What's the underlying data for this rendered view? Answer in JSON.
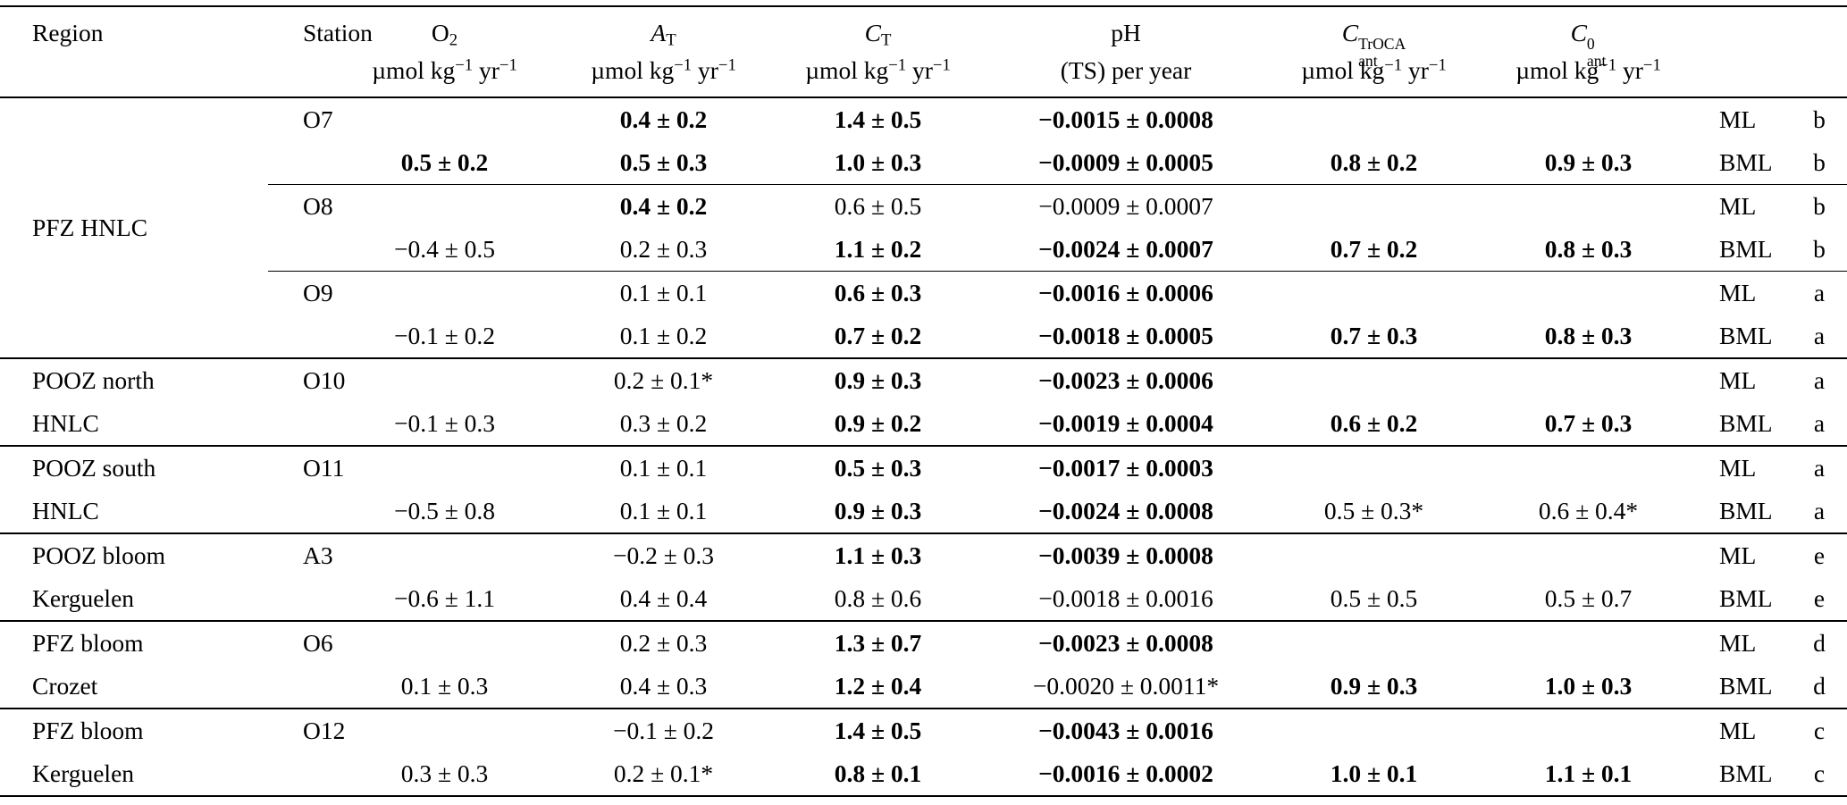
{
  "table": {
    "columns": [
      {
        "id": "region",
        "main": [
          {
            "t": "Region"
          }
        ],
        "unit": []
      },
      {
        "id": "station",
        "main": [
          {
            "t": "Station"
          }
        ],
        "unit": []
      },
      {
        "id": "o2",
        "main": [
          {
            "t": "O"
          },
          {
            "t": "2",
            "s": "sub"
          }
        ],
        "unit": [
          {
            "t": "µmol kg"
          },
          {
            "t": "−1",
            "s": "sup"
          },
          {
            "t": " yr"
          },
          {
            "t": "−1",
            "s": "sup"
          }
        ]
      },
      {
        "id": "at",
        "main": [
          {
            "t": "A",
            "s": "i"
          },
          {
            "t": "T",
            "s": "sub"
          }
        ],
        "unit": [
          {
            "t": "µmol kg"
          },
          {
            "t": "−1",
            "s": "sup"
          },
          {
            "t": " yr"
          },
          {
            "t": "−1",
            "s": "sup"
          }
        ]
      },
      {
        "id": "ct",
        "main": [
          {
            "t": "C",
            "s": "i"
          },
          {
            "t": "T",
            "s": "sub"
          }
        ],
        "unit": [
          {
            "t": "µmol kg"
          },
          {
            "t": "−1",
            "s": "sup"
          },
          {
            "t": " yr"
          },
          {
            "t": "−1",
            "s": "sup"
          }
        ]
      },
      {
        "id": "ph",
        "main": [
          {
            "t": "pH"
          }
        ],
        "unit": [
          {
            "t": "(TS) per year"
          }
        ]
      },
      {
        "id": "cant_troca",
        "main": [
          {
            "t": "C",
            "s": "i"
          },
          {
            "sup": "TrOCA",
            "sub": "ant"
          }
        ],
        "unit": [
          {
            "t": "µmol kg"
          },
          {
            "t": "−1",
            "s": "sup"
          },
          {
            "t": " yr"
          },
          {
            "t": "−1",
            "s": "sup"
          }
        ]
      },
      {
        "id": "cant0",
        "main": [
          {
            "t": "C",
            "s": "i"
          },
          {
            "sup": "0",
            "sub": "ant"
          }
        ],
        "unit": [
          {
            "t": "µmol kg"
          },
          {
            "t": "−1",
            "s": "sup"
          },
          {
            "t": " yr"
          },
          {
            "t": "−1",
            "s": "sup"
          }
        ]
      },
      {
        "id": "layer",
        "main": [],
        "unit": []
      },
      {
        "id": "note",
        "main": [],
        "unit": []
      }
    ],
    "groups": [
      {
        "region": [
          "PFZ HNLC"
        ],
        "stations": [
          {
            "name": "O7",
            "rows": [
              {
                "o2": null,
                "at": {
                  "v": "0.4 ± 0.2",
                  "b": true
                },
                "ct": {
                  "v": "1.4 ± 0.5",
                  "b": true
                },
                "ph": {
                  "v": "−0.0015 ± 0.0008",
                  "b": true
                },
                "cant_troca": null,
                "cant0": null,
                "layer": "ML",
                "note": "b"
              },
              {
                "o2": {
                  "v": "0.5 ± 0.2",
                  "b": true
                },
                "at": {
                  "v": "0.5 ± 0.3",
                  "b": true
                },
                "ct": {
                  "v": "1.0 ± 0.3",
                  "b": true
                },
                "ph": {
                  "v": "−0.0009 ± 0.0005",
                  "b": true
                },
                "cant_troca": {
                  "v": "0.8 ± 0.2",
                  "b": true
                },
                "cant0": {
                  "v": "0.9 ± 0.3",
                  "b": true
                },
                "layer": "BML",
                "note": "b"
              }
            ]
          },
          {
            "name": "O8",
            "rows": [
              {
                "o2": null,
                "at": {
                  "v": "0.4 ± 0.2",
                  "b": true
                },
                "ct": {
                  "v": "0.6 ± 0.5",
                  "b": false
                },
                "ph": {
                  "v": "−0.0009 ± 0.0007",
                  "b": false
                },
                "cant_troca": null,
                "cant0": null,
                "layer": "ML",
                "note": "b"
              },
              {
                "o2": {
                  "v": "−0.4 ± 0.5",
                  "b": false
                },
                "at": {
                  "v": "0.2 ± 0.3",
                  "b": false
                },
                "ct": {
                  "v": "1.1 ± 0.2",
                  "b": true
                },
                "ph": {
                  "v": "−0.0024 ± 0.0007",
                  "b": true
                },
                "cant_troca": {
                  "v": "0.7 ± 0.2",
                  "b": true
                },
                "cant0": {
                  "v": "0.8 ± 0.3",
                  "b": true
                },
                "layer": "BML",
                "note": "b"
              }
            ]
          },
          {
            "name": "O9",
            "rows": [
              {
                "o2": null,
                "at": {
                  "v": "0.1 ± 0.1",
                  "b": false
                },
                "ct": {
                  "v": "0.6 ± 0.3",
                  "b": true
                },
                "ph": {
                  "v": "−0.0016 ± 0.0006",
                  "b": true
                },
                "cant_troca": null,
                "cant0": null,
                "layer": "ML",
                "note": "a"
              },
              {
                "o2": {
                  "v": "−0.1 ± 0.2",
                  "b": false
                },
                "at": {
                  "v": "0.1 ± 0.2",
                  "b": false
                },
                "ct": {
                  "v": "0.7 ± 0.2",
                  "b": true
                },
                "ph": {
                  "v": "−0.0018 ± 0.0005",
                  "b": true
                },
                "cant_troca": {
                  "v": "0.7 ± 0.3",
                  "b": true
                },
                "cant0": {
                  "v": "0.8 ± 0.3",
                  "b": true
                },
                "layer": "BML",
                "note": "a"
              }
            ]
          }
        ]
      },
      {
        "region": [
          "POOZ north",
          "HNLC"
        ],
        "stations": [
          {
            "name": "O10",
            "rows": [
              {
                "o2": null,
                "at": {
                  "v": "0.2 ± 0.1*",
                  "b": false
                },
                "ct": {
                  "v": "0.9 ± 0.3",
                  "b": true
                },
                "ph": {
                  "v": "−0.0023 ± 0.0006",
                  "b": true
                },
                "cant_troca": null,
                "cant0": null,
                "layer": "ML",
                "note": "a"
              },
              {
                "o2": {
                  "v": "−0.1 ± 0.3",
                  "b": false
                },
                "at": {
                  "v": "0.3 ± 0.2",
                  "b": false
                },
                "ct": {
                  "v": "0.9 ± 0.2",
                  "b": true
                },
                "ph": {
                  "v": "−0.0019 ± 0.0004",
                  "b": true
                },
                "cant_troca": {
                  "v": "0.6 ± 0.2",
                  "b": true
                },
                "cant0": {
                  "v": "0.7 ± 0.3",
                  "b": true
                },
                "layer": "BML",
                "note": "a"
              }
            ]
          }
        ]
      },
      {
        "region": [
          "POOZ south",
          "HNLC"
        ],
        "stations": [
          {
            "name": "O11",
            "rows": [
              {
                "o2": null,
                "at": {
                  "v": "0.1 ± 0.1",
                  "b": false
                },
                "ct": {
                  "v": "0.5 ± 0.3",
                  "b": true
                },
                "ph": {
                  "v": "−0.0017 ± 0.0003",
                  "b": true
                },
                "cant_troca": null,
                "cant0": null,
                "layer": "ML",
                "note": "a"
              },
              {
                "o2": {
                  "v": "−0.5 ± 0.8",
                  "b": false
                },
                "at": {
                  "v": "0.1 ± 0.1",
                  "b": false
                },
                "ct": {
                  "v": "0.9 ± 0.3",
                  "b": true
                },
                "ph": {
                  "v": "−0.0024 ± 0.0008",
                  "b": true
                },
                "cant_troca": {
                  "v": "0.5 ± 0.3*",
                  "b": false
                },
                "cant0": {
                  "v": "0.6 ± 0.4*",
                  "b": false
                },
                "layer": "BML",
                "note": "a"
              }
            ]
          }
        ]
      },
      {
        "region": [
          "POOZ bloom",
          "Kerguelen"
        ],
        "stations": [
          {
            "name": "A3",
            "rows": [
              {
                "o2": null,
                "at": {
                  "v": "−0.2 ± 0.3",
                  "b": false
                },
                "ct": {
                  "v": "1.1 ± 0.3",
                  "b": true
                },
                "ph": {
                  "v": "−0.0039 ± 0.0008",
                  "b": true
                },
                "cant_troca": null,
                "cant0": null,
                "layer": "ML",
                "note": "e"
              },
              {
                "o2": {
                  "v": "−0.6 ± 1.1",
                  "b": false
                },
                "at": {
                  "v": "0.4 ± 0.4",
                  "b": false
                },
                "ct": {
                  "v": "0.8 ± 0.6",
                  "b": false
                },
                "ph": {
                  "v": "−0.0018 ± 0.0016",
                  "b": false
                },
                "cant_troca": {
                  "v": "0.5 ± 0.5",
                  "b": false
                },
                "cant0": {
                  "v": "0.5 ± 0.7",
                  "b": false
                },
                "layer": "BML",
                "note": "e"
              }
            ]
          }
        ]
      },
      {
        "region": [
          "PFZ bloom",
          "Crozet"
        ],
        "stations": [
          {
            "name": "O6",
            "rows": [
              {
                "o2": null,
                "at": {
                  "v": "0.2 ± 0.3",
                  "b": false
                },
                "ct": {
                  "v": "1.3 ± 0.7",
                  "b": true
                },
                "ph": {
                  "v": "−0.0023 ± 0.0008",
                  "b": true
                },
                "cant_troca": null,
                "cant0": null,
                "layer": "ML",
                "note": "d"
              },
              {
                "o2": {
                  "v": "0.1 ± 0.3",
                  "b": false
                },
                "at": {
                  "v": "0.4 ± 0.3",
                  "b": false
                },
                "ct": {
                  "v": "1.2 ± 0.4",
                  "b": true
                },
                "ph": {
                  "v": "−0.0020 ± 0.0011*",
                  "b": false
                },
                "cant_troca": {
                  "v": "0.9 ± 0.3",
                  "b": true
                },
                "cant0": {
                  "v": "1.0 ± 0.3",
                  "b": true
                },
                "layer": "BML",
                "note": "d"
              }
            ]
          }
        ]
      },
      {
        "region": [
          "PFZ bloom",
          "Kerguelen"
        ],
        "stations": [
          {
            "name": "O12",
            "rows": [
              {
                "o2": null,
                "at": {
                  "v": "−0.1 ± 0.2",
                  "b": false
                },
                "ct": {
                  "v": "1.4 ± 0.5",
                  "b": true
                },
                "ph": {
                  "v": "−0.0043 ± 0.0016",
                  "b": true
                },
                "cant_troca": null,
                "cant0": null,
                "layer": "ML",
                "note": "c"
              },
              {
                "o2": {
                  "v": "0.3 ± 0.3",
                  "b": false
                },
                "at": {
                  "v": "0.2 ± 0.1*",
                  "b": false
                },
                "ct": {
                  "v": "0.8 ± 0.1",
                  "b": true
                },
                "ph": {
                  "v": "−0.0016 ± 0.0002",
                  "b": true
                },
                "cant_troca": {
                  "v": "1.0 ± 0.1",
                  "b": true
                },
                "cant0": {
                  "v": "1.1 ± 0.1",
                  "b": true
                },
                "layer": "BML",
                "note": "c"
              }
            ]
          }
        ]
      }
    ]
  }
}
